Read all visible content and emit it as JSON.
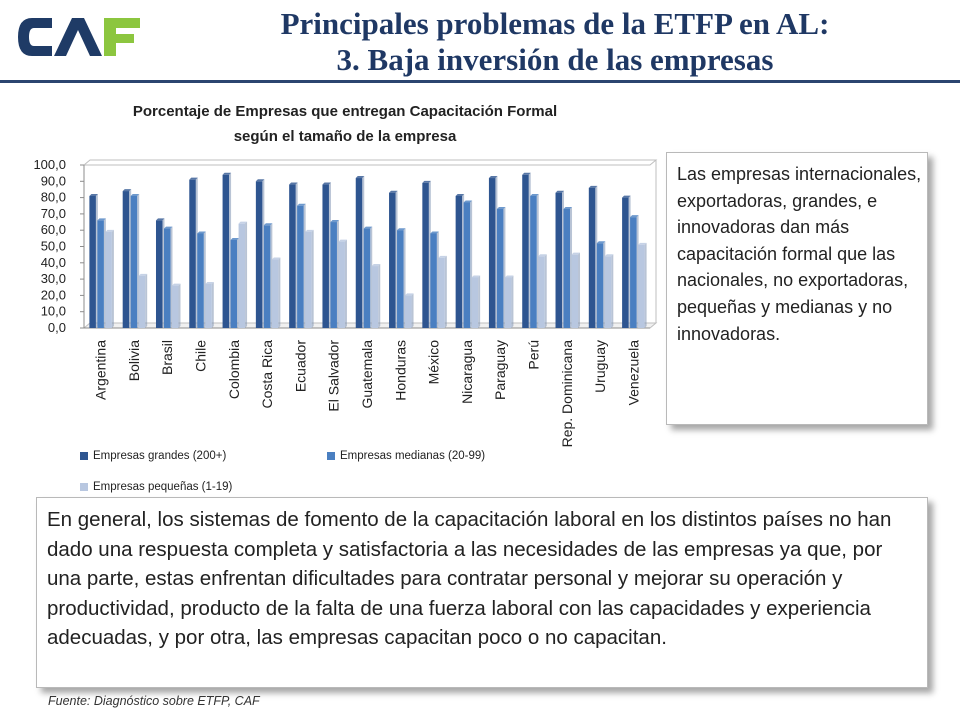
{
  "header": {
    "logo_text": "CAF",
    "title_line1": "Principales problemas de la ETFP en AL:",
    "title_line2": "3. Baja inversión de las empresas",
    "colors": {
      "title": "#1f3864",
      "logo_dark": "#1f3b66",
      "logo_green": "#8cc63f",
      "rule": "#2b4570"
    }
  },
  "chart_data": {
    "type": "bar",
    "title_line1": "Porcentaje de Empresas que entregan Capacitación Formal",
    "title_line2": "según el tamaño de la empresa",
    "categories": [
      "Argentina",
      "Bolivia",
      "Brasil",
      "Chile",
      "Colombia",
      "Costa Rica",
      "Ecuador",
      "El Salvador",
      "Guatemala",
      "Honduras",
      "México",
      "Nicaragua",
      "Paraguay",
      "Perú",
      "Rep. Dominicana",
      "Uruguay",
      "Venezuela"
    ],
    "series": [
      {
        "name": "Empresas grandes (200+)",
        "color": "#2e5590",
        "values": [
          81,
          84,
          66,
          91,
          94,
          90,
          88,
          88,
          92,
          83,
          89,
          81,
          92,
          94,
          83,
          86,
          80
        ]
      },
      {
        "name": "Empresas medianas (20-99)",
        "color": "#4a7fc1",
        "values": [
          66,
          81,
          61,
          58,
          54,
          63,
          75,
          65,
          61,
          60,
          58,
          77,
          73,
          81,
          73,
          52,
          68
        ]
      },
      {
        "name": "Empresas pequeñas (1-19)",
        "color": "#b8c7e0",
        "values": [
          59,
          32,
          26,
          27,
          64,
          42,
          59,
          53,
          38,
          20,
          43,
          31,
          31,
          44,
          45,
          44,
          51
        ]
      }
    ],
    "yticks": [
      "100,0",
      "90,0",
      "80,0",
      "70,0",
      "60,0",
      "50,0",
      "40,0",
      "30,0",
      "20,0",
      "10,0",
      "0,0"
    ],
    "ylim": [
      0,
      100
    ],
    "grid": false,
    "legend_position": "bottom"
  },
  "side_text": "Las empresas internacionales, exportadoras, grandes, e innovadoras dan más capacitación formal que las nacionales, no exportadoras, pequeñas y medianas y no innovadoras.",
  "main_text": "En general, los sistemas de fomento de la capacitación laboral en los distintos países no han dado una respuesta completa y satisfactoria a las necesidades de las empresas ya que,  por una parte,  estas enfrentan dificultades para contratar personal y mejorar su operación y productividad, producto de la falta de una fuerza laboral con las capacidades y experiencia adecuadas, y por otra, las empresas capacitan poco o no capacitan.",
  "source": "Fuente: Diagnóstico sobre ETFP, CAF"
}
